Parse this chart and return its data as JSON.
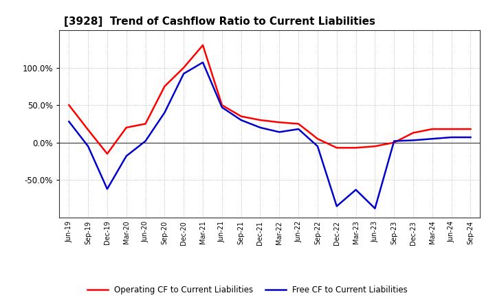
{
  "title": "[3928]  Trend of Cashflow Ratio to Current Liabilities",
  "x_labels": [
    "Jun-19",
    "Sep-19",
    "Dec-19",
    "Mar-20",
    "Jun-20",
    "Sep-20",
    "Dec-20",
    "Mar-21",
    "Jun-21",
    "Sep-21",
    "Dec-21",
    "Mar-22",
    "Jun-22",
    "Sep-22",
    "Dec-22",
    "Mar-23",
    "Jun-23",
    "Sep-23",
    "Dec-23",
    "Mar-24",
    "Jun-24",
    "Sep-24"
  ],
  "operating_cf": [
    50,
    17,
    -15,
    20,
    25,
    75,
    100,
    130,
    50,
    35,
    30,
    27,
    25,
    5,
    -7,
    -7,
    -5,
    0,
    13,
    18,
    18,
    18
  ],
  "free_cf": [
    28,
    -5,
    -62,
    -18,
    2,
    40,
    92,
    107,
    47,
    30,
    20,
    14,
    18,
    -5,
    -85,
    -63,
    -88,
    2,
    3,
    5,
    7,
    7
  ],
  "operating_color": "#ff0000",
  "free_color": "#0000cc",
  "background_color": "#ffffff",
  "plot_bg_color": "#ffffff",
  "grid_color": "#888888",
  "ylim": [
    -100,
    150
  ],
  "yticks": [
    -50.0,
    0.0,
    50.0,
    100.0
  ],
  "legend_operating": "Operating CF to Current Liabilities",
  "legend_free": "Free CF to Current Liabilities",
  "linewidth": 1.8
}
